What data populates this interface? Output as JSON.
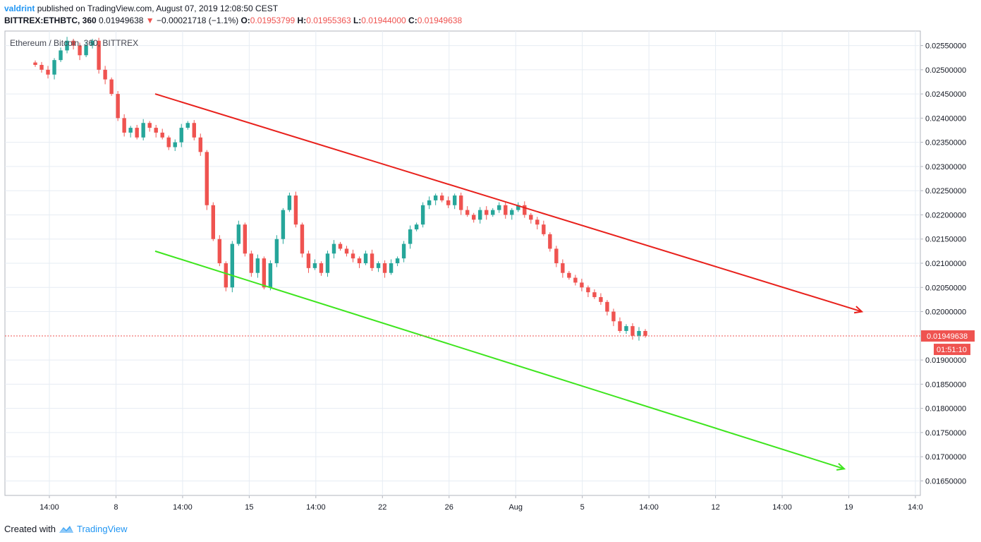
{
  "header": {
    "author": "valdrint",
    "published_text": "published on TradingView.com, August 07, 2019 12:08:50 CEST",
    "symbol": "BITTREX:ETHBTC, 360",
    "last": "0.01949638",
    "change_arrow": "▼",
    "change": "−0.00021718 (−1.1%)",
    "o_label": "O:",
    "o_value": "0.01953799",
    "h_label": "H:",
    "h_value": "0.01955363",
    "l_label": "L:",
    "l_value": "0.01944000",
    "c_label": "C:",
    "c_value": "0.01949638"
  },
  "watermark": "Ethereum / Bitcoin, 360, BITTREX",
  "footer": {
    "created_with": "Created with",
    "brand": "TradingView",
    "logo_icon": "tradingview-logo-icon"
  },
  "price_tag": {
    "value": "0.01949638",
    "countdown": "01:51:10",
    "color": "#ef5350"
  },
  "colors": {
    "up": "#26a69a",
    "down": "#ef5350",
    "resistance": "#e8211c",
    "support": "#3ee51e",
    "grid": "#e6ecf3"
  },
  "chart_data": {
    "type": "candlestick",
    "title": "Ethereum / Bitcoin, 360, BITTREX",
    "xlabel": "",
    "ylabel": "",
    "ylim": [
      0.0162,
      0.0258
    ],
    "y_ticks": [
      "0.02550000",
      "0.02500000",
      "0.02450000",
      "0.02400000",
      "0.02350000",
      "0.02300000",
      "0.02250000",
      "0.02200000",
      "0.02150000",
      "0.02100000",
      "0.02050000",
      "0.02000000",
      "0.01900000",
      "0.01850000",
      "0.01800000",
      "0.01750000",
      "0.01700000",
      "0.01650000"
    ],
    "x_ticks": [
      "14:00",
      "8",
      "14:00",
      "15",
      "14:00",
      "22",
      "26",
      "Aug",
      "5",
      "14:00",
      "12",
      "14:00",
      "19",
      "14:0"
    ],
    "grid": true,
    "current_price_line": 0.01949638,
    "candles_approx_closes": [
      0.0251,
      0.025,
      0.0249,
      0.0252,
      0.0254,
      0.0256,
      0.0255,
      0.0253,
      0.0255,
      0.0256,
      0.025,
      0.0248,
      0.0245,
      0.024,
      0.0237,
      0.0238,
      0.0236,
      0.0239,
      0.0238,
      0.0237,
      0.0236,
      0.0234,
      0.0235,
      0.0238,
      0.0239,
      0.0236,
      0.0233,
      0.0222,
      0.0215,
      0.021,
      0.0205,
      0.0214,
      0.0218,
      0.0212,
      0.0208,
      0.0211,
      0.0205,
      0.021,
      0.0215,
      0.0221,
      0.0224,
      0.0218,
      0.0212,
      0.0209,
      0.021,
      0.0208,
      0.0212,
      0.0214,
      0.0213,
      0.0212,
      0.0211,
      0.021,
      0.0212,
      0.0209,
      0.021,
      0.0208,
      0.021,
      0.0211,
      0.0214,
      0.0217,
      0.0218,
      0.0222,
      0.0223,
      0.0224,
      0.0223,
      0.0222,
      0.0224,
      0.0221,
      0.022,
      0.0219,
      0.0221,
      0.022,
      0.0221,
      0.0222,
      0.022,
      0.0221,
      0.0222,
      0.022,
      0.0219,
      0.0218,
      0.0216,
      0.0213,
      0.021,
      0.0208,
      0.0207,
      0.0206,
      0.0205,
      0.0204,
      0.0203,
      0.0202,
      0.02,
      0.0198,
      0.0196,
      0.0197,
      0.0195,
      0.0196,
      0.0195
    ],
    "trendlines": [
      {
        "name": "resistance",
        "color": "#e8211c",
        "from": [
          0,
          0.0245
        ],
        "to": [
          1,
          0.02
        ]
      },
      {
        "name": "support",
        "color": "#3ee51e",
        "from": [
          0,
          0.02125
        ],
        "to": [
          1,
          0.01675
        ]
      }
    ]
  }
}
